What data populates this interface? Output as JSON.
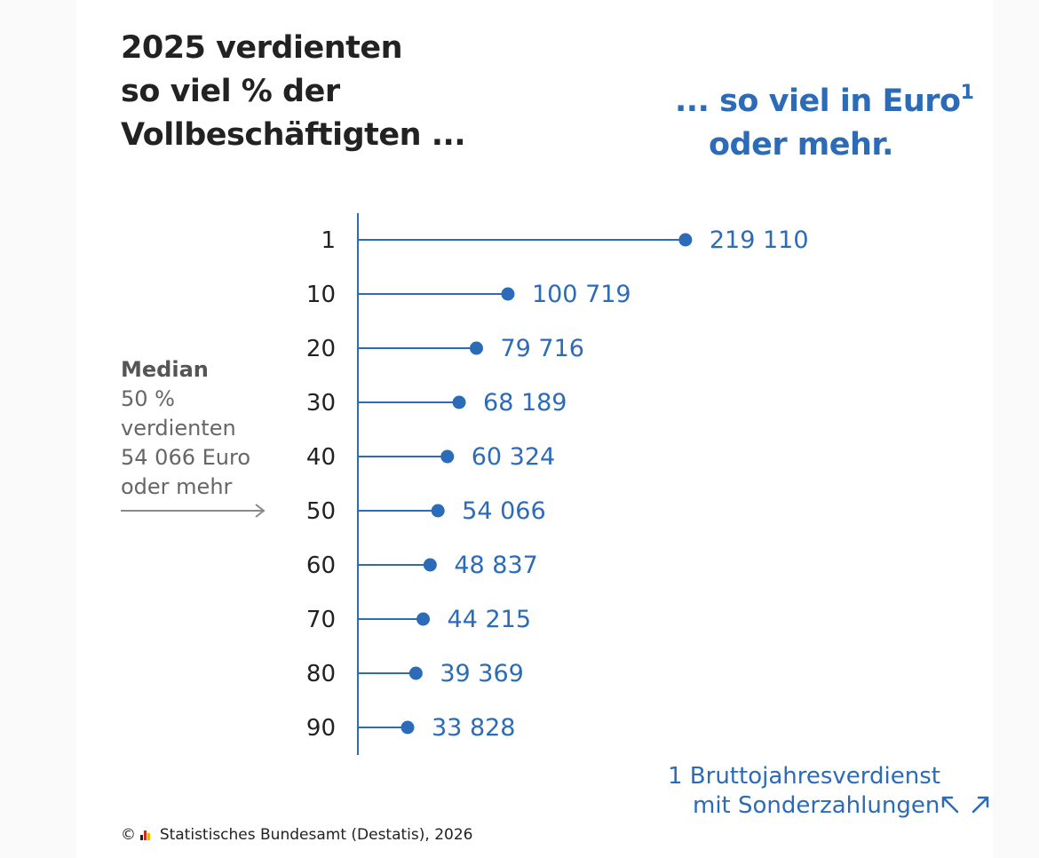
{
  "title": {
    "line1": "2025 verdienten",
    "line2": "so viel % der",
    "line3": "Vollbeschäftigten ..."
  },
  "subtitle": {
    "line1": "... so viel in Euro",
    "sup": "1",
    "line2": "oder mehr."
  },
  "median": {
    "heading": "Median",
    "line1": "50 %",
    "line2": "verdienten",
    "line3": "54 066 Euro",
    "line4": "oder mehr"
  },
  "footnote": {
    "line1": "1 Bruttojahresverdienst",
    "line2": "mit Sonderzahlungen"
  },
  "credits": {
    "symbol": "©",
    "text": "Statistisches Bundesamt (Destatis), 2026"
  },
  "colors": {
    "accent": "#2b6bb8",
    "text": "#222222",
    "muted": "#666666"
  },
  "chart_data": {
    "type": "lollipop",
    "orientation": "horizontal",
    "categories": [
      "1",
      "10",
      "20",
      "30",
      "40",
      "50",
      "60",
      "70",
      "80",
      "90"
    ],
    "values": [
      219110,
      100719,
      79716,
      68189,
      60324,
      54066,
      48837,
      44215,
      39369,
      33828
    ],
    "value_labels": [
      "219 110",
      "100 719",
      "79 716",
      "68 189",
      "60 324",
      "54 066",
      "48 837",
      "44 215",
      "39 369",
      "33 828"
    ],
    "xlim": [
      0,
      219110
    ],
    "highlight_category": "50",
    "grid": false,
    "legend": "none"
  }
}
